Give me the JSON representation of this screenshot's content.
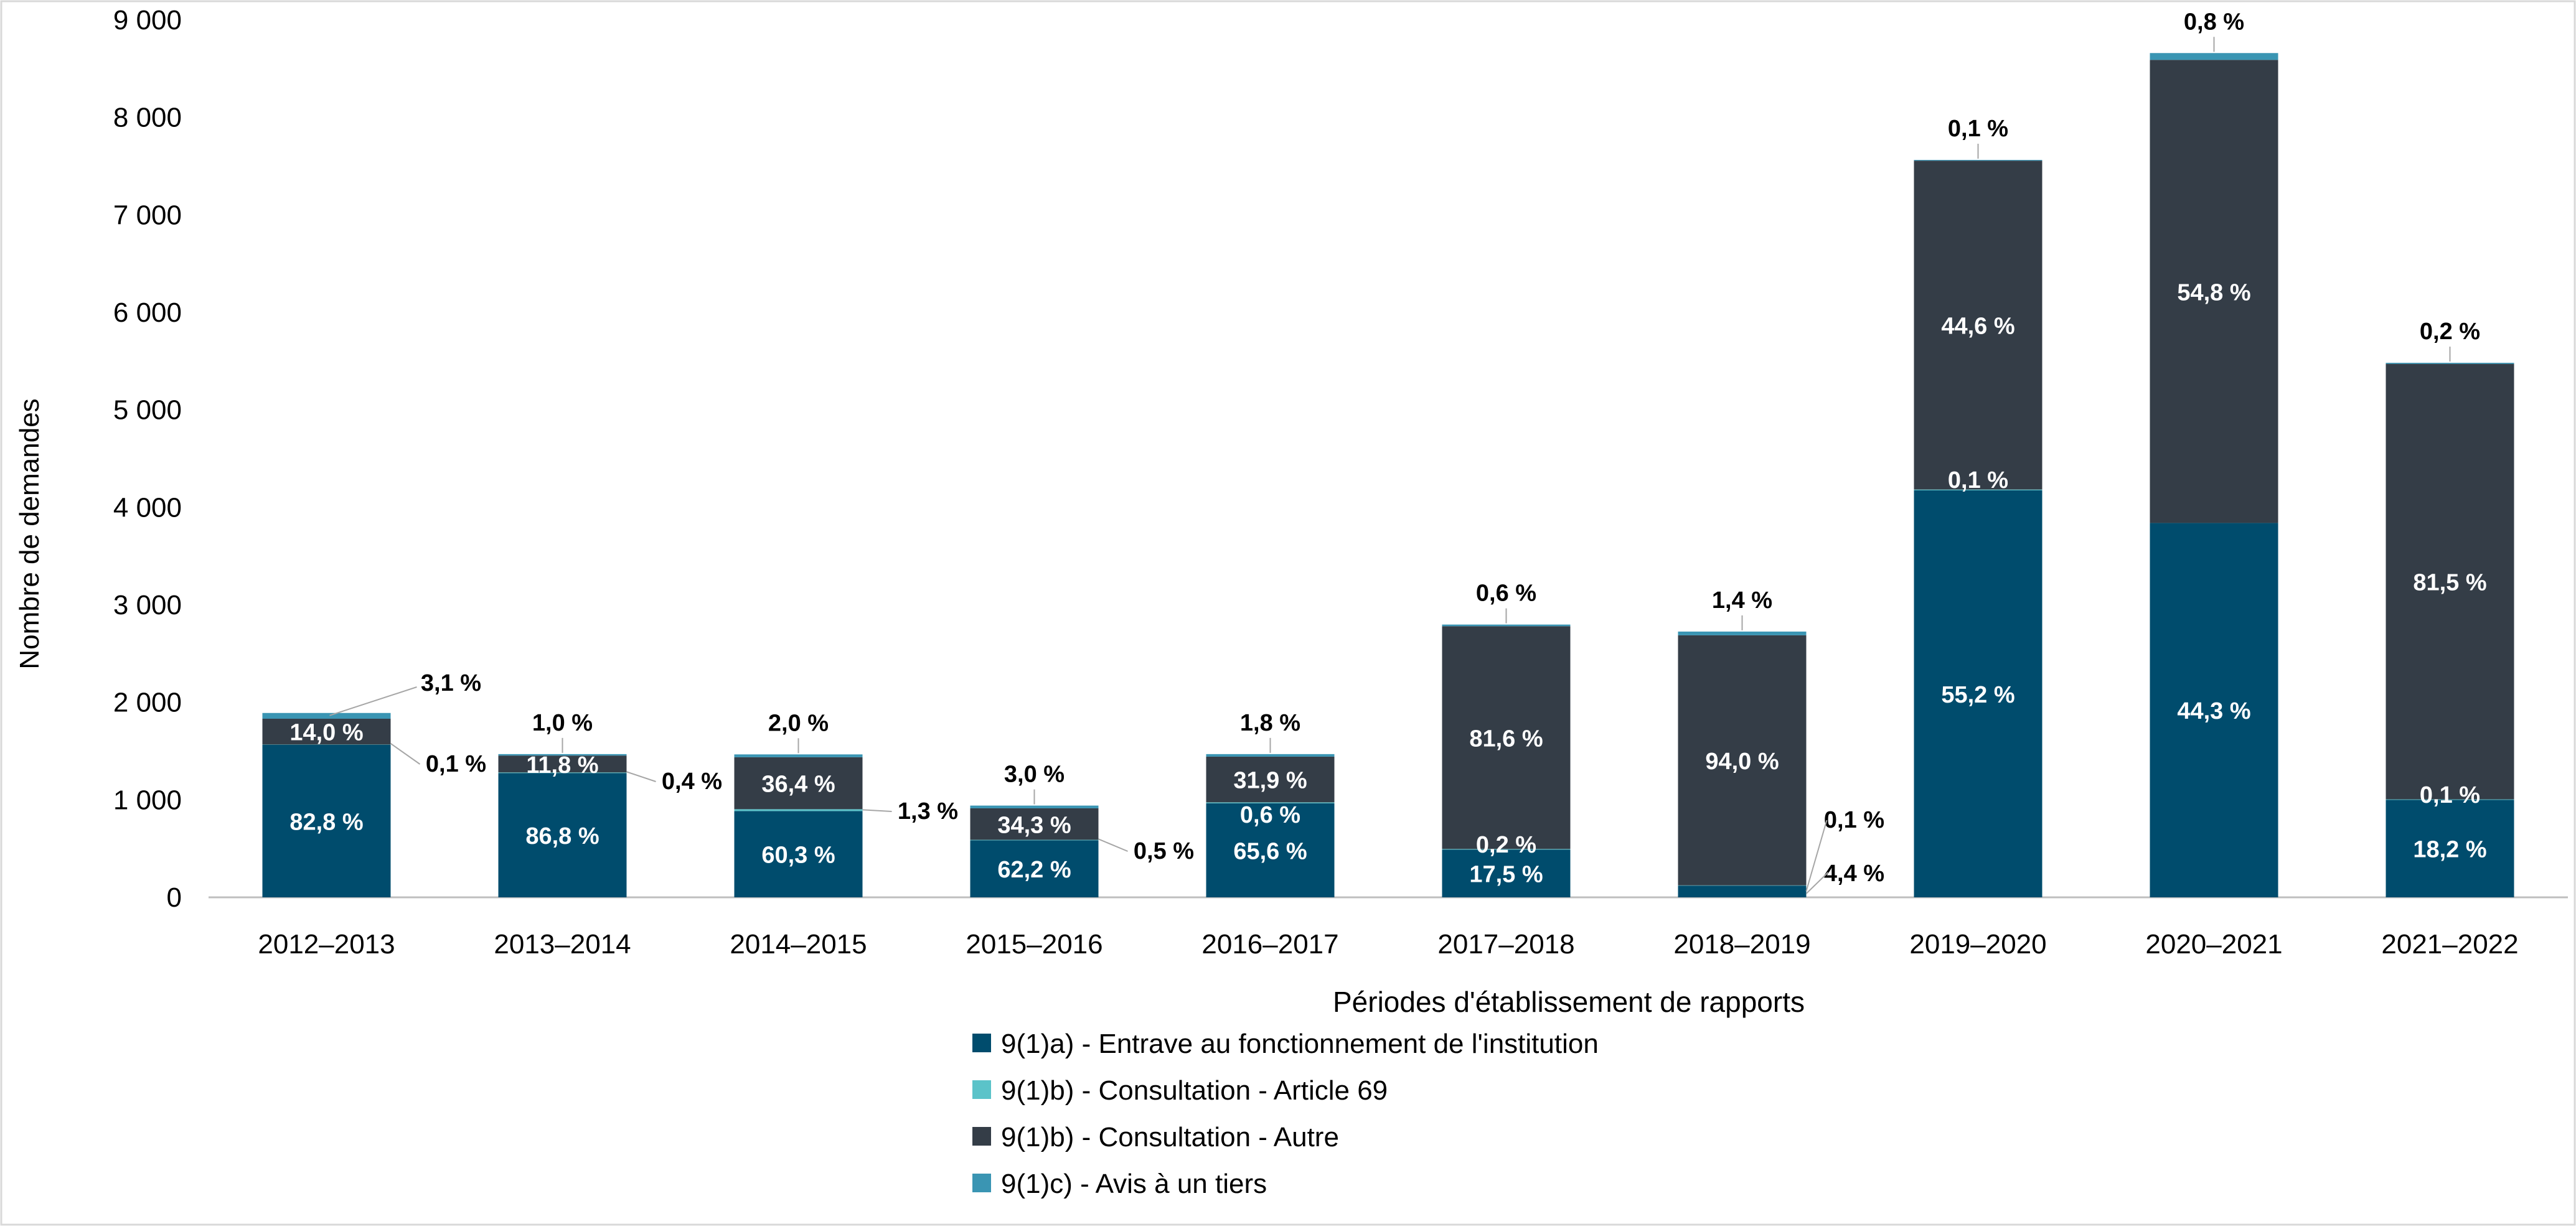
{
  "chart_data": {
    "type": "bar",
    "stacked": true,
    "title": "",
    "xlabel": "Périodes d'établissement de rapports",
    "ylabel": "Nombre de demandes",
    "ylim": [
      0,
      9000
    ],
    "yticks": [
      0,
      1000,
      2000,
      3000,
      4000,
      5000,
      6000,
      7000,
      8000,
      9000
    ],
    "ytick_labels": [
      "0",
      "1 000",
      "2 000",
      "3 000",
      "4 000",
      "5 000",
      "6 000",
      "7 000",
      "8 000",
      "9 000"
    ],
    "grid": false,
    "legend_position": "bottom",
    "categories": [
      "2012–2013",
      "2013–2014",
      "2014–2015",
      "2015–2016",
      "2016–2017",
      "2017–2018",
      "2018–2019",
      "2019–2020",
      "2020–2021",
      "2021–2022"
    ],
    "series": [
      {
        "name": "9(1)a) - Entrave au fonctionnement de l'institution",
        "color": "#004c6d",
        "values": [
          1565,
          1275,
          885,
          585,
          965,
          490,
          120,
          4175,
          3840,
          1000
        ],
        "labels": [
          "82,8 %",
          "86,8 %",
          "60,3 %",
          "62,2 %",
          "65,6 %",
          "17,5 %",
          "4,4 %",
          "55,2 %",
          "44,3 %",
          "18,2 %"
        ]
      },
      {
        "name": "9(1)b) - Consultation - Article 69",
        "color": "#5bc3c9",
        "values": [
          2,
          6,
          19,
          5,
          9,
          6,
          3,
          8,
          0,
          5
        ],
        "labels": [
          "0,1 %",
          "0,4 %",
          "1,3 %",
          "0,5 %",
          "0,6 %",
          "0,2 %",
          "0,1 %",
          "0,1 %",
          "",
          "0,1 %"
        ]
      },
      {
        "name": "9(1)b) - Consultation - Autre",
        "color": "#343d47",
        "values": [
          265,
          173,
          533,
          323,
          469,
          2285,
          2565,
          3373,
          4750,
          4467
        ],
        "labels": [
          "14,0 %",
          "11,8 %",
          "36,4 %",
          "34,3 %",
          "31,9 %",
          "81,6 %",
          "94,0 %",
          "44,6 %",
          "54,8 %",
          "81,5 %"
        ]
      },
      {
        "name": "9(1)c) - Avis à un tiers",
        "color": "#3a95b3",
        "values": [
          59,
          15,
          29,
          28,
          26,
          17,
          38,
          8,
          70,
          11
        ],
        "labels": [
          "3,1 %",
          "1,0 %",
          "2,0 %",
          "3,0 %",
          "1,8 %",
          "0,6 %",
          "1,4 %",
          "0,1 %",
          "0,8 %",
          "0,2 %"
        ]
      }
    ]
  }
}
